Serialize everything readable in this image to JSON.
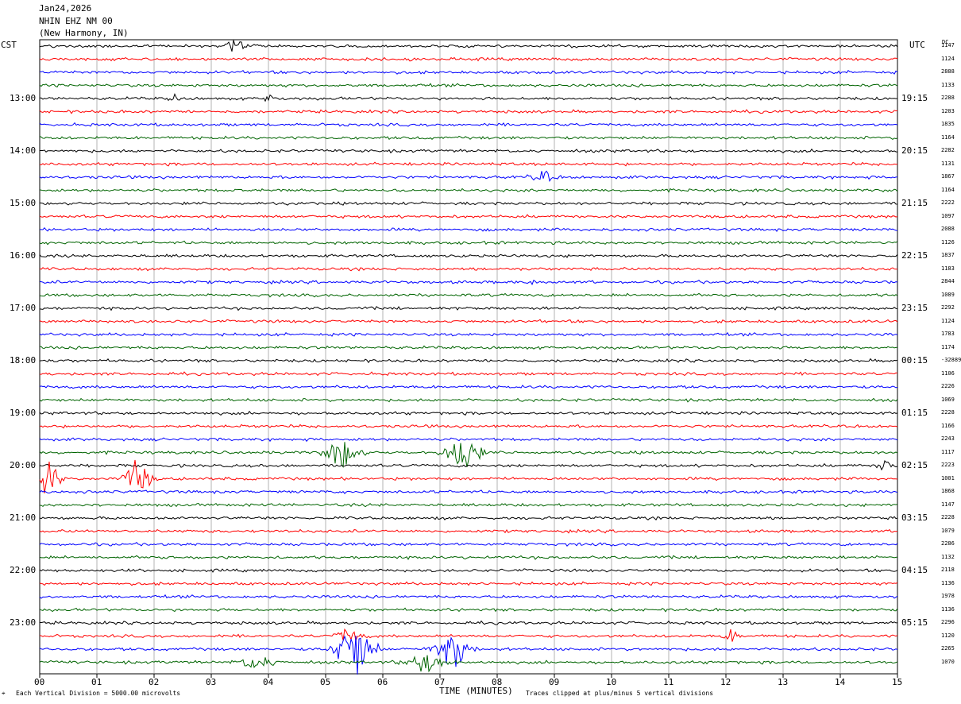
{
  "header": {
    "date": "Jan24,2026",
    "station": "NHIN EHZ NM 00",
    "location": "(New Harmony, IN)",
    "left_zone": "CST",
    "right_zone": "UTC",
    "dc_label": "DC"
  },
  "footer": {
    "scale_note": "Each Vertical Division = 5000.00 microvolts",
    "clip_note": "Traces clipped at plus/minus 5 vertical divisions",
    "xlabel": "TIME (MINUTES)"
  },
  "chart_data": {
    "type": "line",
    "title": "NHIN EHZ NM 00",
    "xlabel": "TIME (MINUTES)",
    "ylabel": "",
    "xlim": [
      0,
      15
    ],
    "x_ticks": [
      "00",
      "01",
      "02",
      "03",
      "04",
      "05",
      "06",
      "07",
      "08",
      "09",
      "10",
      "11",
      "12",
      "13",
      "14",
      "15"
    ],
    "trace_colors": [
      "#000000",
      "#ff0000",
      "#0000ff",
      "#006400"
    ],
    "hour_labels_cst": [
      "13:00",
      "14:00",
      "15:00",
      "16:00",
      "17:00",
      "18:00",
      "19:00",
      "20:00",
      "21:00",
      "22:00",
      "23:00"
    ],
    "hour_labels_utc": [
      "19:15",
      "20:15",
      "21:15",
      "22:15",
      "23:15",
      "00:15",
      "01:15",
      "02:15",
      "03:15",
      "04:15",
      "05:15"
    ],
    "dc_offsets": [
      "1147",
      "1124",
      "2888",
      "1133",
      "2288",
      "1203",
      "1835",
      "1164",
      "2282",
      "1131",
      "1867",
      "1164",
      "2222",
      "1097",
      "2088",
      "1126",
      "1837",
      "1183",
      "2844",
      "1089",
      "2292",
      "1124",
      "1783",
      "1174",
      "-32889",
      "1106",
      "2226",
      "1069",
      "2228",
      "1166",
      "2243",
      "1117",
      "2223",
      "1001",
      "1868",
      "1147",
      "2228",
      "1079",
      "2286",
      "1132",
      "2118",
      "1136",
      "1978",
      "1136",
      "2296",
      "1120",
      "2265",
      "1070"
    ],
    "events": [
      {
        "trace": 31,
        "center_min": 5.3,
        "width_min": 0.6,
        "amp": 16
      },
      {
        "trace": 31,
        "center_min": 7.4,
        "width_min": 0.6,
        "amp": 22
      },
      {
        "trace": 33,
        "center_min": 0.15,
        "width_min": 0.4,
        "amp": 20
      },
      {
        "trace": 33,
        "center_min": 1.7,
        "width_min": 0.5,
        "amp": 18
      },
      {
        "trace": 32,
        "center_min": 14.8,
        "width_min": 0.25,
        "amp": 10
      },
      {
        "trace": 46,
        "center_min": 5.5,
        "width_min": 0.7,
        "amp": 30
      },
      {
        "trace": 46,
        "center_min": 7.2,
        "width_min": 0.6,
        "amp": 24
      },
      {
        "trace": 47,
        "center_min": 3.8,
        "width_min": 0.6,
        "amp": 8
      },
      {
        "trace": 47,
        "center_min": 6.8,
        "width_min": 0.8,
        "amp": 10
      },
      {
        "trace": 45,
        "center_min": 12.1,
        "width_min": 0.3,
        "amp": 6
      },
      {
        "trace": 45,
        "center_min": 5.4,
        "width_min": 0.5,
        "amp": 8
      },
      {
        "trace": 18,
        "center_min": 8.6,
        "width_min": 0.1,
        "amp": 7
      },
      {
        "trace": 10,
        "center_min": 8.8,
        "width_min": 0.4,
        "amp": 6
      },
      {
        "trace": 0,
        "center_min": 3.4,
        "width_min": 0.3,
        "amp": 6
      },
      {
        "trace": 4,
        "center_min": 2.4,
        "width_min": 0.2,
        "amp": 6
      },
      {
        "trace": 4,
        "center_min": 4.0,
        "width_min": 0.2,
        "amp": 6
      }
    ]
  }
}
